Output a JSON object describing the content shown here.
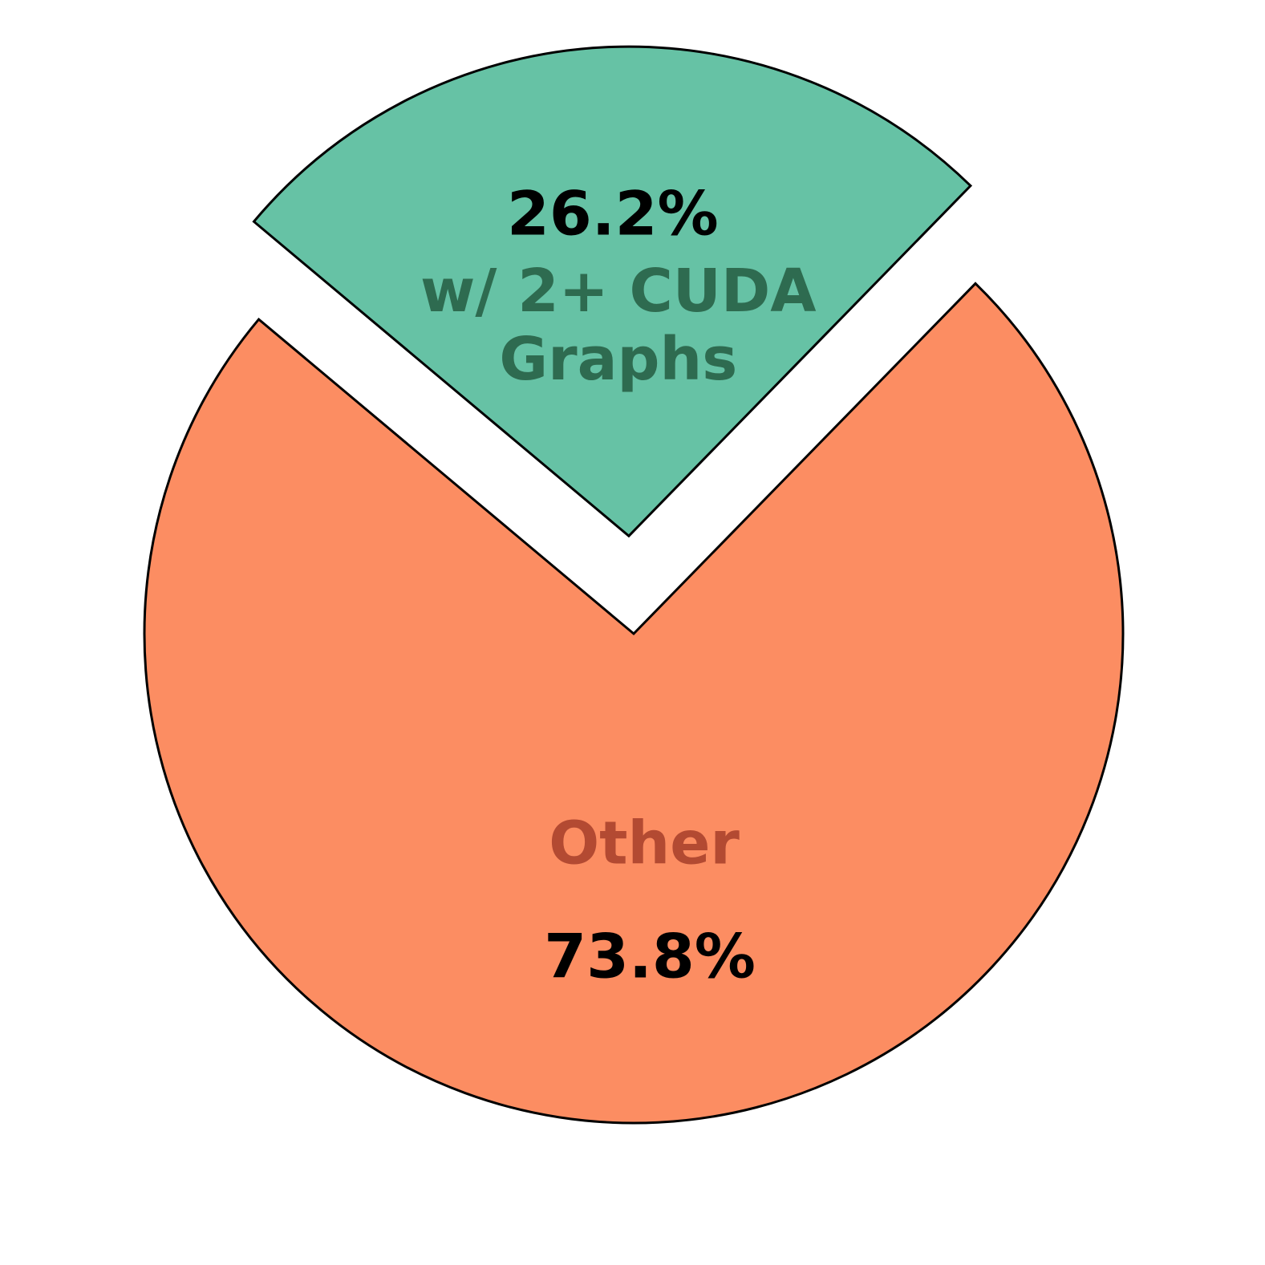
{
  "chart_data": {
    "type": "pie",
    "categories": [
      "w/ 2+ CUDA Graphs",
      "Other"
    ],
    "values": [
      26.2,
      73.8
    ],
    "value_labels": [
      "26.2%",
      "73.8%"
    ],
    "colors": [
      "#66c2a5",
      "#fc8d62"
    ],
    "label_colors": [
      "#2e6b50",
      "#b34a32"
    ]
  }
}
